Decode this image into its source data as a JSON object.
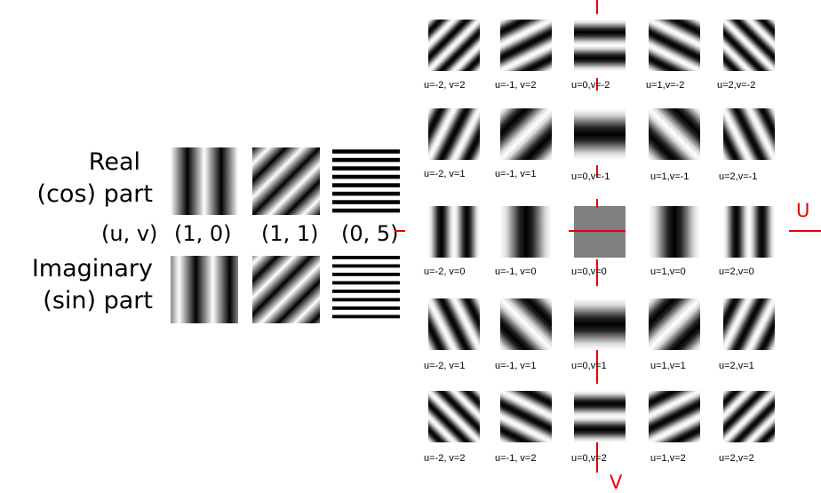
{
  "left_panel": {
    "real_label_line1": "Real",
    "real_label_line2": "(cos) part",
    "uv_label": "(u, v)",
    "imag_label_line1": "Imaginary",
    "imag_label_line2": "(sin) part",
    "examples": [
      {
        "label": "(1, 0)",
        "u": 1,
        "v": 0
      },
      {
        "label": "(1, 1)",
        "u": 1,
        "v": 1
      },
      {
        "label": "(0, 5)",
        "u": 0,
        "v": 5
      }
    ]
  },
  "grid": {
    "axis_u": "U",
    "axis_v": "V",
    "rows": [
      [
        "u=-2, v=2",
        "u=-1, v=2",
        "u=0,v=-2",
        "u=1,v=-2",
        "u=2,v=-2"
      ],
      [
        "u=-2, v=1",
        "u=-1, v=1",
        "u=0,v=-1",
        "u=1,v=-1",
        "u=2,v=-1"
      ],
      [
        "u=-2, v=0",
        "u=-1, v=0",
        "u=0,v=0",
        "u=1,v=0",
        "u=2,v=0"
      ],
      [
        "u=-2, v=1",
        "u=-1, v=1",
        "u=0,v=1",
        "u=1,v=1",
        "u=2,v=1"
      ],
      [
        "u=-2, v=2",
        "u=-1, v=2",
        "u=0,v=2",
        "u=1,v=2",
        "u=2,v=2"
      ]
    ],
    "center_gray": "#808080",
    "axis_color": "#e8000b"
  }
}
